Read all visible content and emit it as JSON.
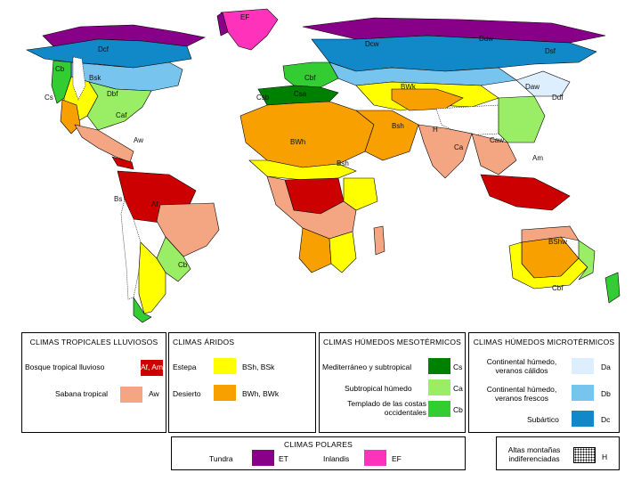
{
  "colors": {
    "Af": "#cc0000",
    "Aw": "#f4a582",
    "BS": "#ffff00",
    "BW": "#f7a000",
    "Cs": "#008000",
    "Ca": "#99ee66",
    "Cb": "#33cc33",
    "Da": "#ddeeff",
    "Db": "#77c4ee",
    "Dc": "#1188c8",
    "ET": "#880088",
    "EF": "#ff33bb",
    "ocean": "#ffffff",
    "border": "#000000"
  },
  "map_labels": [
    "EF",
    "Dcf",
    "Ddw",
    "Dcw",
    "Cb",
    "Bsk",
    "Dbf",
    "Cs",
    "Caf",
    "BWh",
    "Bsh",
    "Aw",
    "Af",
    "Bs",
    "BWk",
    "Bsh",
    "Daw",
    "Ddf",
    "Dsf",
    "Cbf",
    "Csb",
    "Csa",
    "Cbf",
    "H",
    "Am",
    "Ca",
    "Caw",
    "BShw",
    "Cb"
  ],
  "legend": {
    "tropical": {
      "title": "CLIMAS TROPICALES LLUVIOSOS",
      "rows": [
        {
          "label": "Bosque tropical lluvioso",
          "code": "Af, Am",
          "color": "#cc0000"
        },
        {
          "label": "Sabana tropical",
          "code": "Aw",
          "color": "#f4a582"
        }
      ]
    },
    "arid": {
      "title": "CLIMAS ÁRIDOS",
      "rows": [
        {
          "label": "Estepa",
          "code": "BSh, BSk",
          "color": "#ffff00"
        },
        {
          "label": "Desierto",
          "code": "BWh, BWk",
          "color": "#f7a000"
        }
      ]
    },
    "meso": {
      "title": "CLIMAS HÚMEDOS MESOTÉRMICOS",
      "rows": [
        {
          "label": "Mediterráneo y subtropical",
          "code": "Cs",
          "color": "#008000"
        },
        {
          "label": "Subtropical húmedo",
          "code": "Ca",
          "color": "#99ee66"
        },
        {
          "label": "Templado de las costas occidentales",
          "code": "Cb",
          "color": "#33cc33"
        }
      ]
    },
    "micro": {
      "title": "CLIMAS HÚMEDOS MICROTÉRMICOS",
      "rows": [
        {
          "label": "Continental húmedo, veranos cálidos",
          "code": "Da",
          "color": "#ddeeff"
        },
        {
          "label": "Continental húmedo, veranos frescos",
          "code": "Db",
          "color": "#77c4ee"
        },
        {
          "label": "Subártico",
          "code": "Dc",
          "color": "#1188c8"
        }
      ]
    },
    "polar": {
      "title": "CLIMAS POLARES",
      "rows": [
        {
          "label": "Tundra",
          "code": "ET",
          "color": "#880088"
        },
        {
          "label": "Inlandis",
          "code": "EF",
          "color": "#ff33bb"
        }
      ]
    },
    "mountain": {
      "label": "Altas montañas indiferenciadas",
      "code": "H"
    }
  }
}
